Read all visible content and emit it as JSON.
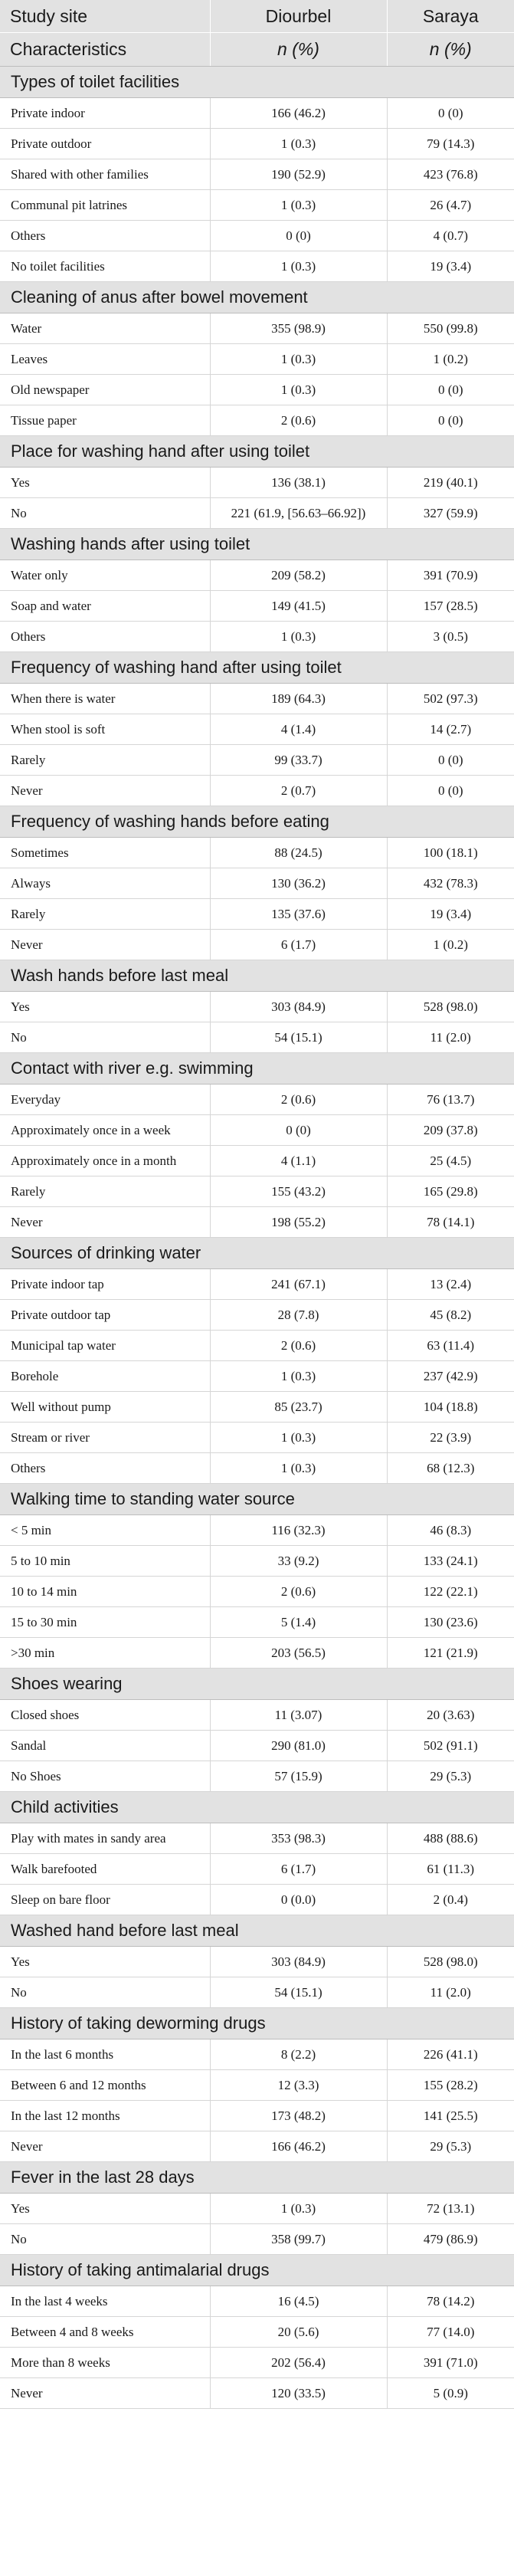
{
  "header": {
    "col1_top": "Study site",
    "col1_bottom": "Characteristics",
    "col2_top": "Diourbel",
    "col2_bottom": "n (%)",
    "col3_top": "Saraya",
    "col3_bottom": "n (%)"
  },
  "sections": [
    {
      "title": "Types of toilet facilities",
      "rows": [
        {
          "label": "Private indoor",
          "diourbel": "166 (46.2)",
          "saraya": "0 (0)"
        },
        {
          "label": "Private outdoor",
          "diourbel": "1 (0.3)",
          "saraya": "79 (14.3)"
        },
        {
          "label": "Shared with other families",
          "diourbel": "190 (52.9)",
          "saraya": "423 (76.8)"
        },
        {
          "label": "Communal pit latrines",
          "diourbel": "1 (0.3)",
          "saraya": "26 (4.7)"
        },
        {
          "label": "Others",
          "diourbel": "0 (0)",
          "saraya": "4 (0.7)"
        },
        {
          "label": "No toilet facilities",
          "diourbel": "1 (0.3)",
          "saraya": "19 (3.4)"
        }
      ]
    },
    {
      "title": "Cleaning of anus after bowel movement",
      "rows": [
        {
          "label": "Water",
          "diourbel": "355 (98.9)",
          "saraya": "550 (99.8)"
        },
        {
          "label": "Leaves",
          "diourbel": "1 (0.3)",
          "saraya": "1 (0.2)"
        },
        {
          "label": "Old newspaper",
          "diourbel": "1 (0.3)",
          "saraya": "0 (0)"
        },
        {
          "label": "Tissue paper",
          "diourbel": "2 (0.6)",
          "saraya": "0 (0)"
        }
      ]
    },
    {
      "title": "Place for washing hand after using toilet",
      "rows": [
        {
          "label": "Yes",
          "diourbel": "136 (38.1)",
          "saraya": "219 (40.1)"
        },
        {
          "label": "No",
          "diourbel": "221 (61.9, [56.63–66.92])",
          "saraya": "327 (59.9)"
        }
      ]
    },
    {
      "title": "Washing hands after using toilet",
      "rows": [
        {
          "label": "Water only",
          "diourbel": "209 (58.2)",
          "saraya": "391 (70.9)"
        },
        {
          "label": "Soap and water",
          "diourbel": "149 (41.5)",
          "saraya": "157 (28.5)"
        },
        {
          "label": "Others",
          "diourbel": "1 (0.3)",
          "saraya": "3 (0.5)"
        }
      ]
    },
    {
      "title": "Frequency of washing hand after using toilet",
      "rows": [
        {
          "label": "When there is water",
          "diourbel": "189 (64.3)",
          "saraya": "502 (97.3)"
        },
        {
          "label": "When stool is soft",
          "diourbel": "4 (1.4)",
          "saraya": "14 (2.7)"
        },
        {
          "label": "Rarely",
          "diourbel": "99 (33.7)",
          "saraya": "0 (0)"
        },
        {
          "label": "Never",
          "diourbel": "2 (0.7)",
          "saraya": "0 (0)"
        }
      ]
    },
    {
      "title": "Frequency of washing hands before eating",
      "rows": [
        {
          "label": "Sometimes",
          "diourbel": "88 (24.5)",
          "saraya": "100 (18.1)"
        },
        {
          "label": "Always",
          "diourbel": "130 (36.2)",
          "saraya": "432 (78.3)"
        },
        {
          "label": "Rarely",
          "diourbel": "135 (37.6)",
          "saraya": "19 (3.4)"
        },
        {
          "label": "Never",
          "diourbel": "6 (1.7)",
          "saraya": "1 (0.2)"
        }
      ]
    },
    {
      "title": "Wash hands before last meal",
      "rows": [
        {
          "label": "Yes",
          "diourbel": "303 (84.9)",
          "saraya": "528 (98.0)"
        },
        {
          "label": "No",
          "diourbel": "54 (15.1)",
          "saraya": "11 (2.0)"
        }
      ]
    },
    {
      "title": "Contact with river e.g. swimming",
      "rows": [
        {
          "label": "Everyday",
          "diourbel": "2 (0.6)",
          "saraya": "76 (13.7)"
        },
        {
          "label": "Approximately once in a week",
          "diourbel": "0 (0)",
          "saraya": "209 (37.8)"
        },
        {
          "label": "Approximately once in a month",
          "diourbel": "4 (1.1)",
          "saraya": "25 (4.5)"
        },
        {
          "label": "Rarely",
          "diourbel": "155 (43.2)",
          "saraya": "165 (29.8)"
        },
        {
          "label": "Never",
          "diourbel": "198 (55.2)",
          "saraya": "78 (14.1)"
        }
      ]
    },
    {
      "title": "Sources of drinking water",
      "rows": [
        {
          "label": "Private indoor tap",
          "diourbel": "241 (67.1)",
          "saraya": "13 (2.4)"
        },
        {
          "label": "Private outdoor tap",
          "diourbel": "28 (7.8)",
          "saraya": "45 (8.2)"
        },
        {
          "label": "Municipal tap water",
          "diourbel": "2 (0.6)",
          "saraya": "63 (11.4)"
        },
        {
          "label": "Borehole",
          "diourbel": "1 (0.3)",
          "saraya": "237 (42.9)"
        },
        {
          "label": "Well without pump",
          "diourbel": "85 (23.7)",
          "saraya": "104 (18.8)"
        },
        {
          "label": "Stream or river",
          "diourbel": "1 (0.3)",
          "saraya": "22 (3.9)"
        },
        {
          "label": "Others",
          "diourbel": "1 (0.3)",
          "saraya": "68 (12.3)"
        }
      ]
    },
    {
      "title": "Walking time to standing water source",
      "rows": [
        {
          "label": "< 5 min",
          "diourbel": "116 (32.3)",
          "saraya": "46 (8.3)"
        },
        {
          "label": "5 to 10 min",
          "diourbel": "33 (9.2)",
          "saraya": "133 (24.1)"
        },
        {
          "label": "10 to 14 min",
          "diourbel": "2 (0.6)",
          "saraya": "122 (22.1)"
        },
        {
          "label": "15 to 30 min",
          "diourbel": "5 (1.4)",
          "saraya": "130 (23.6)"
        },
        {
          "label": ">30 min",
          "diourbel": "203 (56.5)",
          "saraya": "121 (21.9)"
        }
      ]
    },
    {
      "title": "Shoes wearing",
      "rows": [
        {
          "label": "Closed shoes",
          "diourbel": "11 (3.07)",
          "saraya": "20 (3.63)"
        },
        {
          "label": "Sandal",
          "diourbel": "290 (81.0)",
          "saraya": "502 (91.1)"
        },
        {
          "label": "No Shoes",
          "diourbel": "57 (15.9)",
          "saraya": "29 (5.3)"
        }
      ]
    },
    {
      "title": "Child activities",
      "rows": [
        {
          "label": "Play with mates in sandy area",
          "diourbel": "353 (98.3)",
          "saraya": "488 (88.6)"
        },
        {
          "label": "Walk barefooted",
          "diourbel": "6 (1.7)",
          "saraya": "61 (11.3)"
        },
        {
          "label": "Sleep on bare floor",
          "diourbel": "0 (0.0)",
          "saraya": "2 (0.4)"
        }
      ]
    },
    {
      "title": "Washed hand before last meal",
      "rows": [
        {
          "label": "Yes",
          "diourbel": "303 (84.9)",
          "saraya": "528 (98.0)"
        },
        {
          "label": "No",
          "diourbel": "54 (15.1)",
          "saraya": "11 (2.0)"
        }
      ]
    },
    {
      "title": "History of taking deworming drugs",
      "rows": [
        {
          "label": "In the last 6 months",
          "diourbel": "8 (2.2)",
          "saraya": "226 (41.1)"
        },
        {
          "label": "Between 6 and 12 months",
          "diourbel": "12 (3.3)",
          "saraya": "155 (28.2)"
        },
        {
          "label": "In the last 12 months",
          "diourbel": "173 (48.2)",
          "saraya": "141 (25.5)"
        },
        {
          "label": "Never",
          "diourbel": "166 (46.2)",
          "saraya": "29 (5.3)"
        }
      ]
    },
    {
      "title": "Fever in the last 28 days",
      "rows": [
        {
          "label": "Yes",
          "diourbel": "1 (0.3)",
          "saraya": "72 (13.1)"
        },
        {
          "label": "No",
          "diourbel": "358 (99.7)",
          "saraya": "479 (86.9)"
        }
      ]
    },
    {
      "title": "History of taking antimalarial drugs",
      "rows": [
        {
          "label": "In the last 4 weeks",
          "diourbel": "16 (4.5)",
          "saraya": "78 (14.2)"
        },
        {
          "label": "Between 4 and 8 weeks",
          "diourbel": "20 (5.6)",
          "saraya": "77 (14.0)"
        },
        {
          "label": "More than 8 weeks",
          "diourbel": "202 (56.4)",
          "saraya": "391 (71.0)"
        },
        {
          "label": "Never",
          "diourbel": "120 (33.5)",
          "saraya": "5 (0.9)"
        }
      ]
    }
  ]
}
